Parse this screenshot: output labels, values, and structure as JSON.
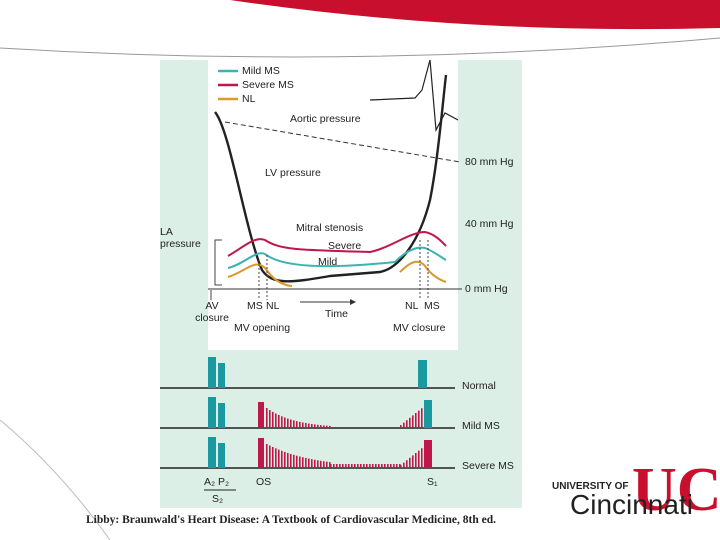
{
  "figure": {
    "legend": [
      "Mild MS",
      "Severe MS",
      "NL"
    ],
    "aortic_pressure": "Aortic pressure",
    "lv_pressure": "LV pressure",
    "mm_80": "80 mm Hg",
    "mm_40": "40 mm Hg",
    "mm_0": "0 mm Hg",
    "la_pressure": "LA pressure",
    "mitral_stenosis": "Mitral stenosis",
    "severe": "Severe",
    "mild": "Mild",
    "av_closure": "AV closure",
    "ms_left": "MS",
    "nl_left": "NL",
    "time": "Time",
    "nl_right": "NL",
    "ms_right": "MS",
    "mv_opening": "MV opening",
    "mv_closure": "MV closure",
    "rows": [
      "Normal",
      "Mild MS",
      "Severe MS"
    ],
    "a2p2": "A₂ P₂",
    "s2": "S₂",
    "os": "OS",
    "s1": "S₁"
  },
  "caption": "Libby: Braunwald's Heart Disease: A Textbook of Cardiovascular Medicine, 8th ed.",
  "logo": {
    "top": "UNIVERSITY OF",
    "name": "Cincinnati"
  }
}
